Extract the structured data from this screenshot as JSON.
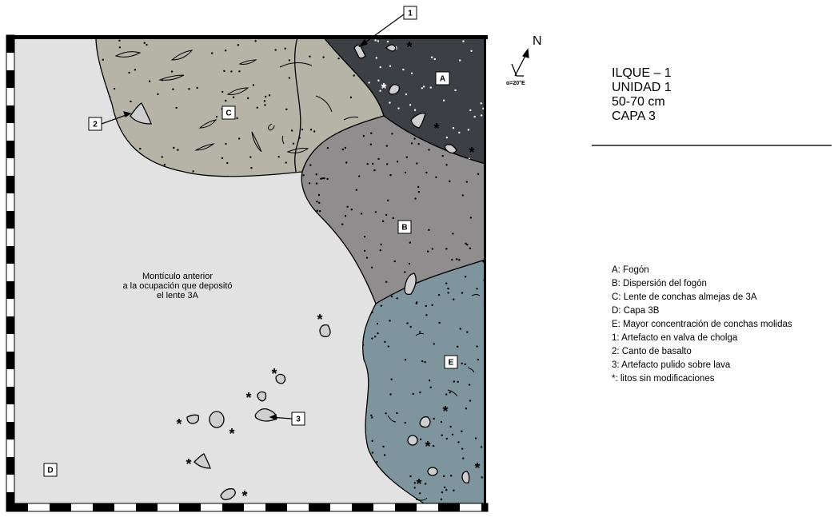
{
  "region_labels": [
    "A",
    "B",
    "C",
    "D",
    "E"
  ],
  "item_labels": [
    "1",
    "2",
    "3"
  ],
  "asterisk": "*",
  "compass": {
    "north": "N",
    "declination": "α=20°E"
  },
  "title_lines": [
    "ILQUE – 1",
    "UNIDAD 1",
    "50-70 cm",
    "CAPA 3"
  ],
  "center_note": [
    "Montículo anterior",
    "a la ocupación que depositó",
    "el lente 3A"
  ],
  "legend": [
    "A: Fogón",
    "B: Dispersión del fogón",
    "C: Lente de conchas almejas de 3A",
    "D: Capa 3B",
    "E: Mayor concentración de conchas molidas",
    "1: Artefacto en valva de cholga",
    "2: Canto de basalto",
    "3: Artefacto pulido sobre lava",
    "*: litos sin modificaciones"
  ]
}
